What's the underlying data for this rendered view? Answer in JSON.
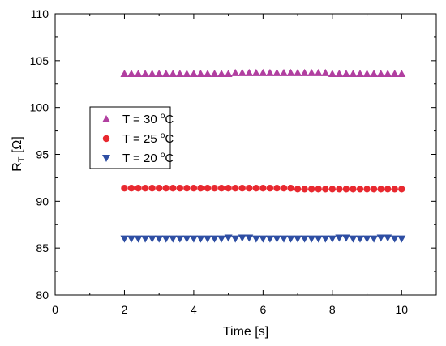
{
  "chart_data": {
    "type": "scatter",
    "title": "",
    "xlabel": "Time [s]",
    "ylabel_main": "R",
    "ylabel_sub": "T",
    "ylabel_unit": " [Ω]",
    "xlim": [
      0,
      11
    ],
    "ylim": [
      80,
      110
    ],
    "xticks": [
      0,
      2,
      4,
      6,
      8,
      10
    ],
    "yticks": [
      80,
      85,
      90,
      95,
      100,
      105,
      110
    ],
    "grid": false,
    "legend_position": "left",
    "x": [
      2.0,
      2.2,
      2.4,
      2.6,
      2.8,
      3.0,
      3.2,
      3.4,
      3.6,
      3.8,
      4.0,
      4.2,
      4.4,
      4.6,
      4.8,
      5.0,
      5.2,
      5.4,
      5.6,
      5.8,
      6.0,
      6.2,
      6.4,
      6.6,
      6.8,
      7.0,
      7.2,
      7.4,
      7.6,
      7.8,
      8.0,
      8.2,
      8.4,
      8.6,
      8.8,
      9.0,
      9.2,
      9.4,
      9.6,
      9.8,
      10.0
    ],
    "series": [
      {
        "name": "T = 30 °C",
        "label_main": "T = 30 ",
        "label_sup": "o",
        "label_unit": "C",
        "marker": "triangle-up",
        "color": "#b13fa0",
        "values": [
          103.6,
          103.6,
          103.6,
          103.6,
          103.6,
          103.6,
          103.6,
          103.6,
          103.6,
          103.6,
          103.6,
          103.6,
          103.6,
          103.6,
          103.6,
          103.6,
          103.7,
          103.7,
          103.7,
          103.7,
          103.7,
          103.7,
          103.7,
          103.7,
          103.7,
          103.7,
          103.7,
          103.7,
          103.7,
          103.7,
          103.6,
          103.6,
          103.6,
          103.6,
          103.6,
          103.6,
          103.6,
          103.6,
          103.6,
          103.6,
          103.6
        ]
      },
      {
        "name": "T = 25 °C",
        "label_main": "T = 25 ",
        "label_sup": "o",
        "label_unit": "C",
        "marker": "circle",
        "color": "#e8282f",
        "values": [
          91.4,
          91.4,
          91.4,
          91.4,
          91.4,
          91.4,
          91.4,
          91.4,
          91.4,
          91.4,
          91.4,
          91.4,
          91.4,
          91.4,
          91.4,
          91.4,
          91.4,
          91.4,
          91.4,
          91.4,
          91.4,
          91.4,
          91.4,
          91.4,
          91.4,
          91.3,
          91.3,
          91.3,
          91.3,
          91.3,
          91.3,
          91.3,
          91.3,
          91.3,
          91.3,
          91.3,
          91.3,
          91.3,
          91.3,
          91.3,
          91.3
        ]
      },
      {
        "name": "T = 20 °C",
        "label_main": "T = 20 ",
        "label_sup": "o",
        "label_unit": "C",
        "marker": "triangle-down",
        "color": "#2e4ea3",
        "values": [
          86.0,
          86.0,
          86.0,
          86.0,
          86.0,
          86.0,
          86.0,
          86.0,
          86.0,
          86.0,
          86.0,
          86.0,
          86.0,
          86.0,
          86.0,
          86.1,
          86.0,
          86.1,
          86.1,
          86.0,
          86.0,
          86.0,
          86.0,
          86.0,
          86.0,
          86.0,
          86.0,
          86.0,
          86.0,
          86.0,
          86.0,
          86.1,
          86.1,
          86.0,
          86.0,
          86.0,
          86.0,
          86.1,
          86.1,
          86.0,
          86.0
        ]
      }
    ]
  }
}
